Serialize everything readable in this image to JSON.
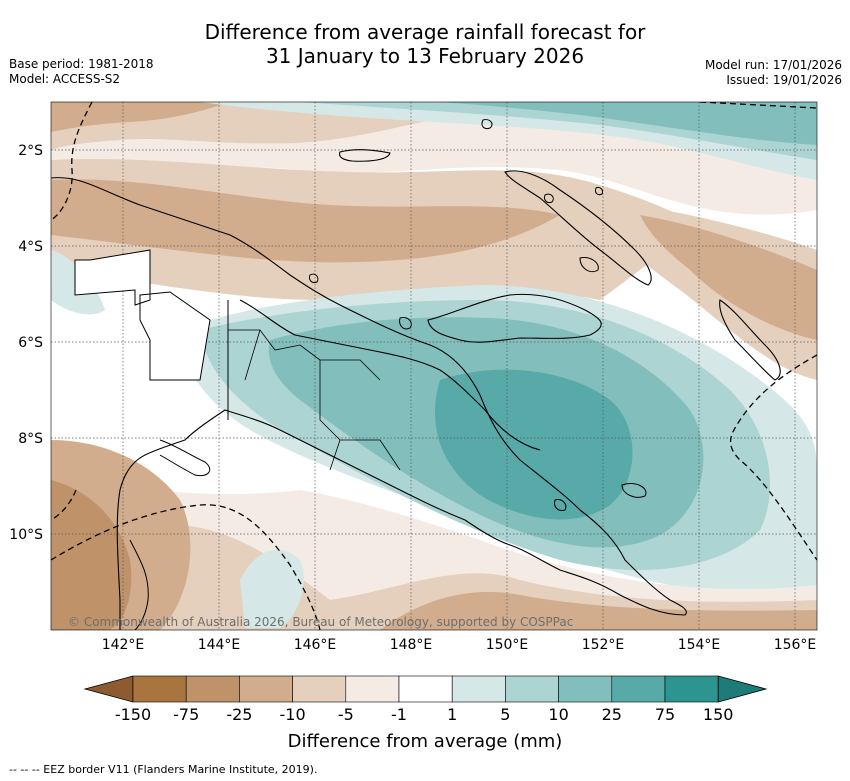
{
  "title": {
    "line1": "Difference from average rainfall forecast for",
    "line2": "31 January to 13 February 2026"
  },
  "meta": {
    "base_period": "Base period: 1981-2018",
    "model": "Model: ACCESS-S2",
    "model_run": "Model run: 17/01/2026",
    "issued": "Issued: 19/01/2026"
  },
  "map": {
    "lat_labels": [
      "2°S",
      "4°S",
      "6°S",
      "8°S",
      "10°S"
    ],
    "lon_labels": [
      "142°E",
      "144°E",
      "146°E",
      "148°E",
      "150°E",
      "152°E",
      "154°E",
      "156°E"
    ],
    "copyright": "© Commonwealth of Australia 2026, Bureau of Meteorology, supported by COSPPac"
  },
  "colorbar": {
    "tick_labels": [
      "-150",
      "-75",
      "-25",
      "-10",
      "-5",
      "-1",
      "1",
      "5",
      "10",
      "25",
      "75",
      "150"
    ],
    "colors": [
      "#a8743f",
      "#c0926a",
      "#d2ad8d",
      "#e5d0bd",
      "#f4ebe5",
      "#ffffff",
      "#d5e8e7",
      "#acd4d2",
      "#82bfbc",
      "#57aaa8",
      "#2c9590"
    ],
    "low_extend_color": "#8e5a2f",
    "high_extend_color": "#1e7c78",
    "title": "Difference from average (mm)"
  },
  "footnote": "-- -- -- EEZ border V11 (Flanders Marine Institute, 2019)."
}
